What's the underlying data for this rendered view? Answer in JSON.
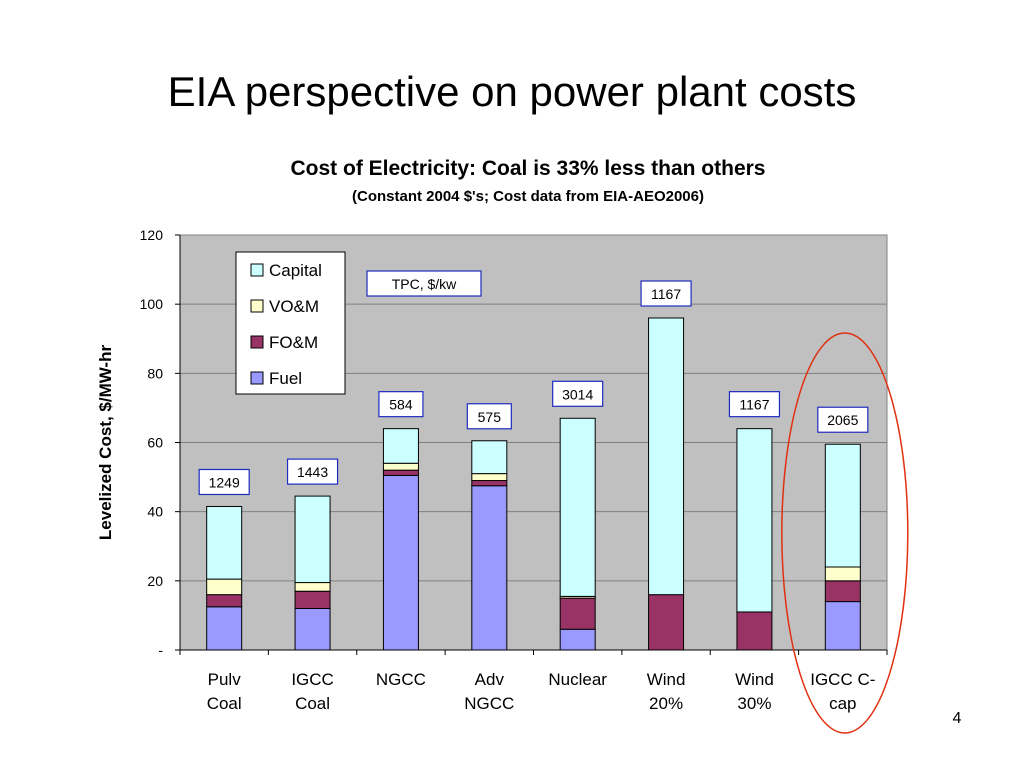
{
  "slide": {
    "title": "EIA perspective on power plant costs",
    "page_number": "4"
  },
  "chart_data": {
    "type": "bar",
    "stacked": true,
    "title": "Cost of Electricity:  Coal is 33% less than others",
    "subtitle": "(Constant 2004 $'s;  Cost data from EIA-AEO2006)",
    "xlabel": "",
    "ylabel": "Levelized Cost, $/MW-hr",
    "ylim": [
      0,
      120
    ],
    "yticks": [
      0,
      20,
      40,
      60,
      80,
      100,
      120
    ],
    "ytick_labels": [
      "-",
      "20",
      "40",
      "60",
      "80",
      "100",
      "120"
    ],
    "plot_background": "#c0c0c0",
    "grid": true,
    "categories": [
      [
        "Pulv",
        "Coal"
      ],
      [
        "IGCC",
        "Coal"
      ],
      [
        "NGCC"
      ],
      [
        "Adv",
        "NGCC"
      ],
      [
        "Nuclear"
      ],
      [
        "Wind",
        "20%"
      ],
      [
        "Wind",
        "30%"
      ],
      [
        "IGCC C-",
        "cap"
      ]
    ],
    "series": [
      {
        "name": "Fuel",
        "color": "#9999ff",
        "values": [
          12.5,
          12,
          50.5,
          47.5,
          6,
          0,
          0,
          14
        ]
      },
      {
        "name": "FO&M",
        "color": "#993366",
        "values": [
          3.5,
          5,
          1.5,
          1.5,
          9,
          16,
          11,
          6
        ]
      },
      {
        "name": "VO&M",
        "color": "#ffffcc",
        "values": [
          4.5,
          2.5,
          2,
          2,
          0.5,
          0,
          0,
          4
        ]
      },
      {
        "name": "Capital",
        "color": "#ccffff",
        "values": [
          21,
          25,
          10,
          9.5,
          51.5,
          80,
          53,
          35.5
        ]
      }
    ],
    "legend": {
      "placement": "top-left",
      "order": [
        "Capital",
        "VO&M",
        "FO&M",
        "Fuel"
      ]
    },
    "annotations": {
      "header_label": "TPC, $/kw",
      "tpc_values": [
        "1249",
        "1443",
        "584",
        "575",
        "3014",
        "1167",
        "1167",
        "2065"
      ]
    },
    "highlight": {
      "type": "ellipse",
      "category": "IGCC C-cap",
      "color": "#e03010"
    }
  }
}
